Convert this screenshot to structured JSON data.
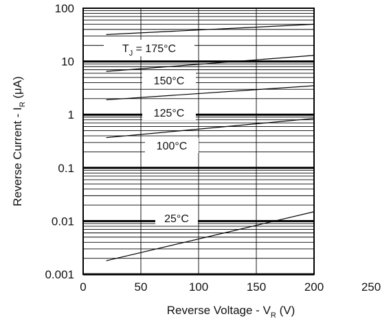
{
  "chart_data": {
    "type": "line",
    "title": "",
    "xlabel": {
      "main": "Reverse Voltage - V",
      "sub": "R",
      "unit": " (V)"
    },
    "ylabel": {
      "main": "Reverse Current - I",
      "sub": "R",
      "unit": " (μA)"
    },
    "xlim": [
      0,
      250
    ],
    "ylim": [
      0.001,
      100
    ],
    "yscale": "log",
    "grid": true,
    "x_ticks": [
      0,
      50,
      100,
      150,
      200,
      250
    ],
    "x_tick_labels": [
      "0",
      "50",
      "100",
      "150",
      "200",
      "250"
    ],
    "y_ticks": [
      100,
      10,
      1,
      0.1,
      0.01,
      0.001
    ],
    "y_tick_labels": [
      "100",
      "10",
      "1",
      "0.1",
      "0.01",
      "0.001"
    ],
    "series": [
      {
        "name": "T_J = 175°C",
        "label_main": "T",
        "label_sub": "J",
        "label_rest": " = 175°C",
        "x": [
          20,
          200
        ],
        "y": [
          32,
          50
        ]
      },
      {
        "name": "150°C",
        "label_main": "150°C",
        "x": [
          20,
          200
        ],
        "y": [
          6.5,
          13
        ]
      },
      {
        "name": "125°C",
        "label_main": "125°C",
        "x": [
          20,
          200
        ],
        "y": [
          1.9,
          3.5
        ]
      },
      {
        "name": "100°C",
        "label_main": "100°C",
        "x": [
          20,
          200
        ],
        "y": [
          0.37,
          0.85
        ]
      },
      {
        "name": "25°C",
        "label_main": "25°C",
        "x": [
          20,
          200
        ],
        "y": [
          0.0018,
          0.015
        ]
      }
    ]
  }
}
